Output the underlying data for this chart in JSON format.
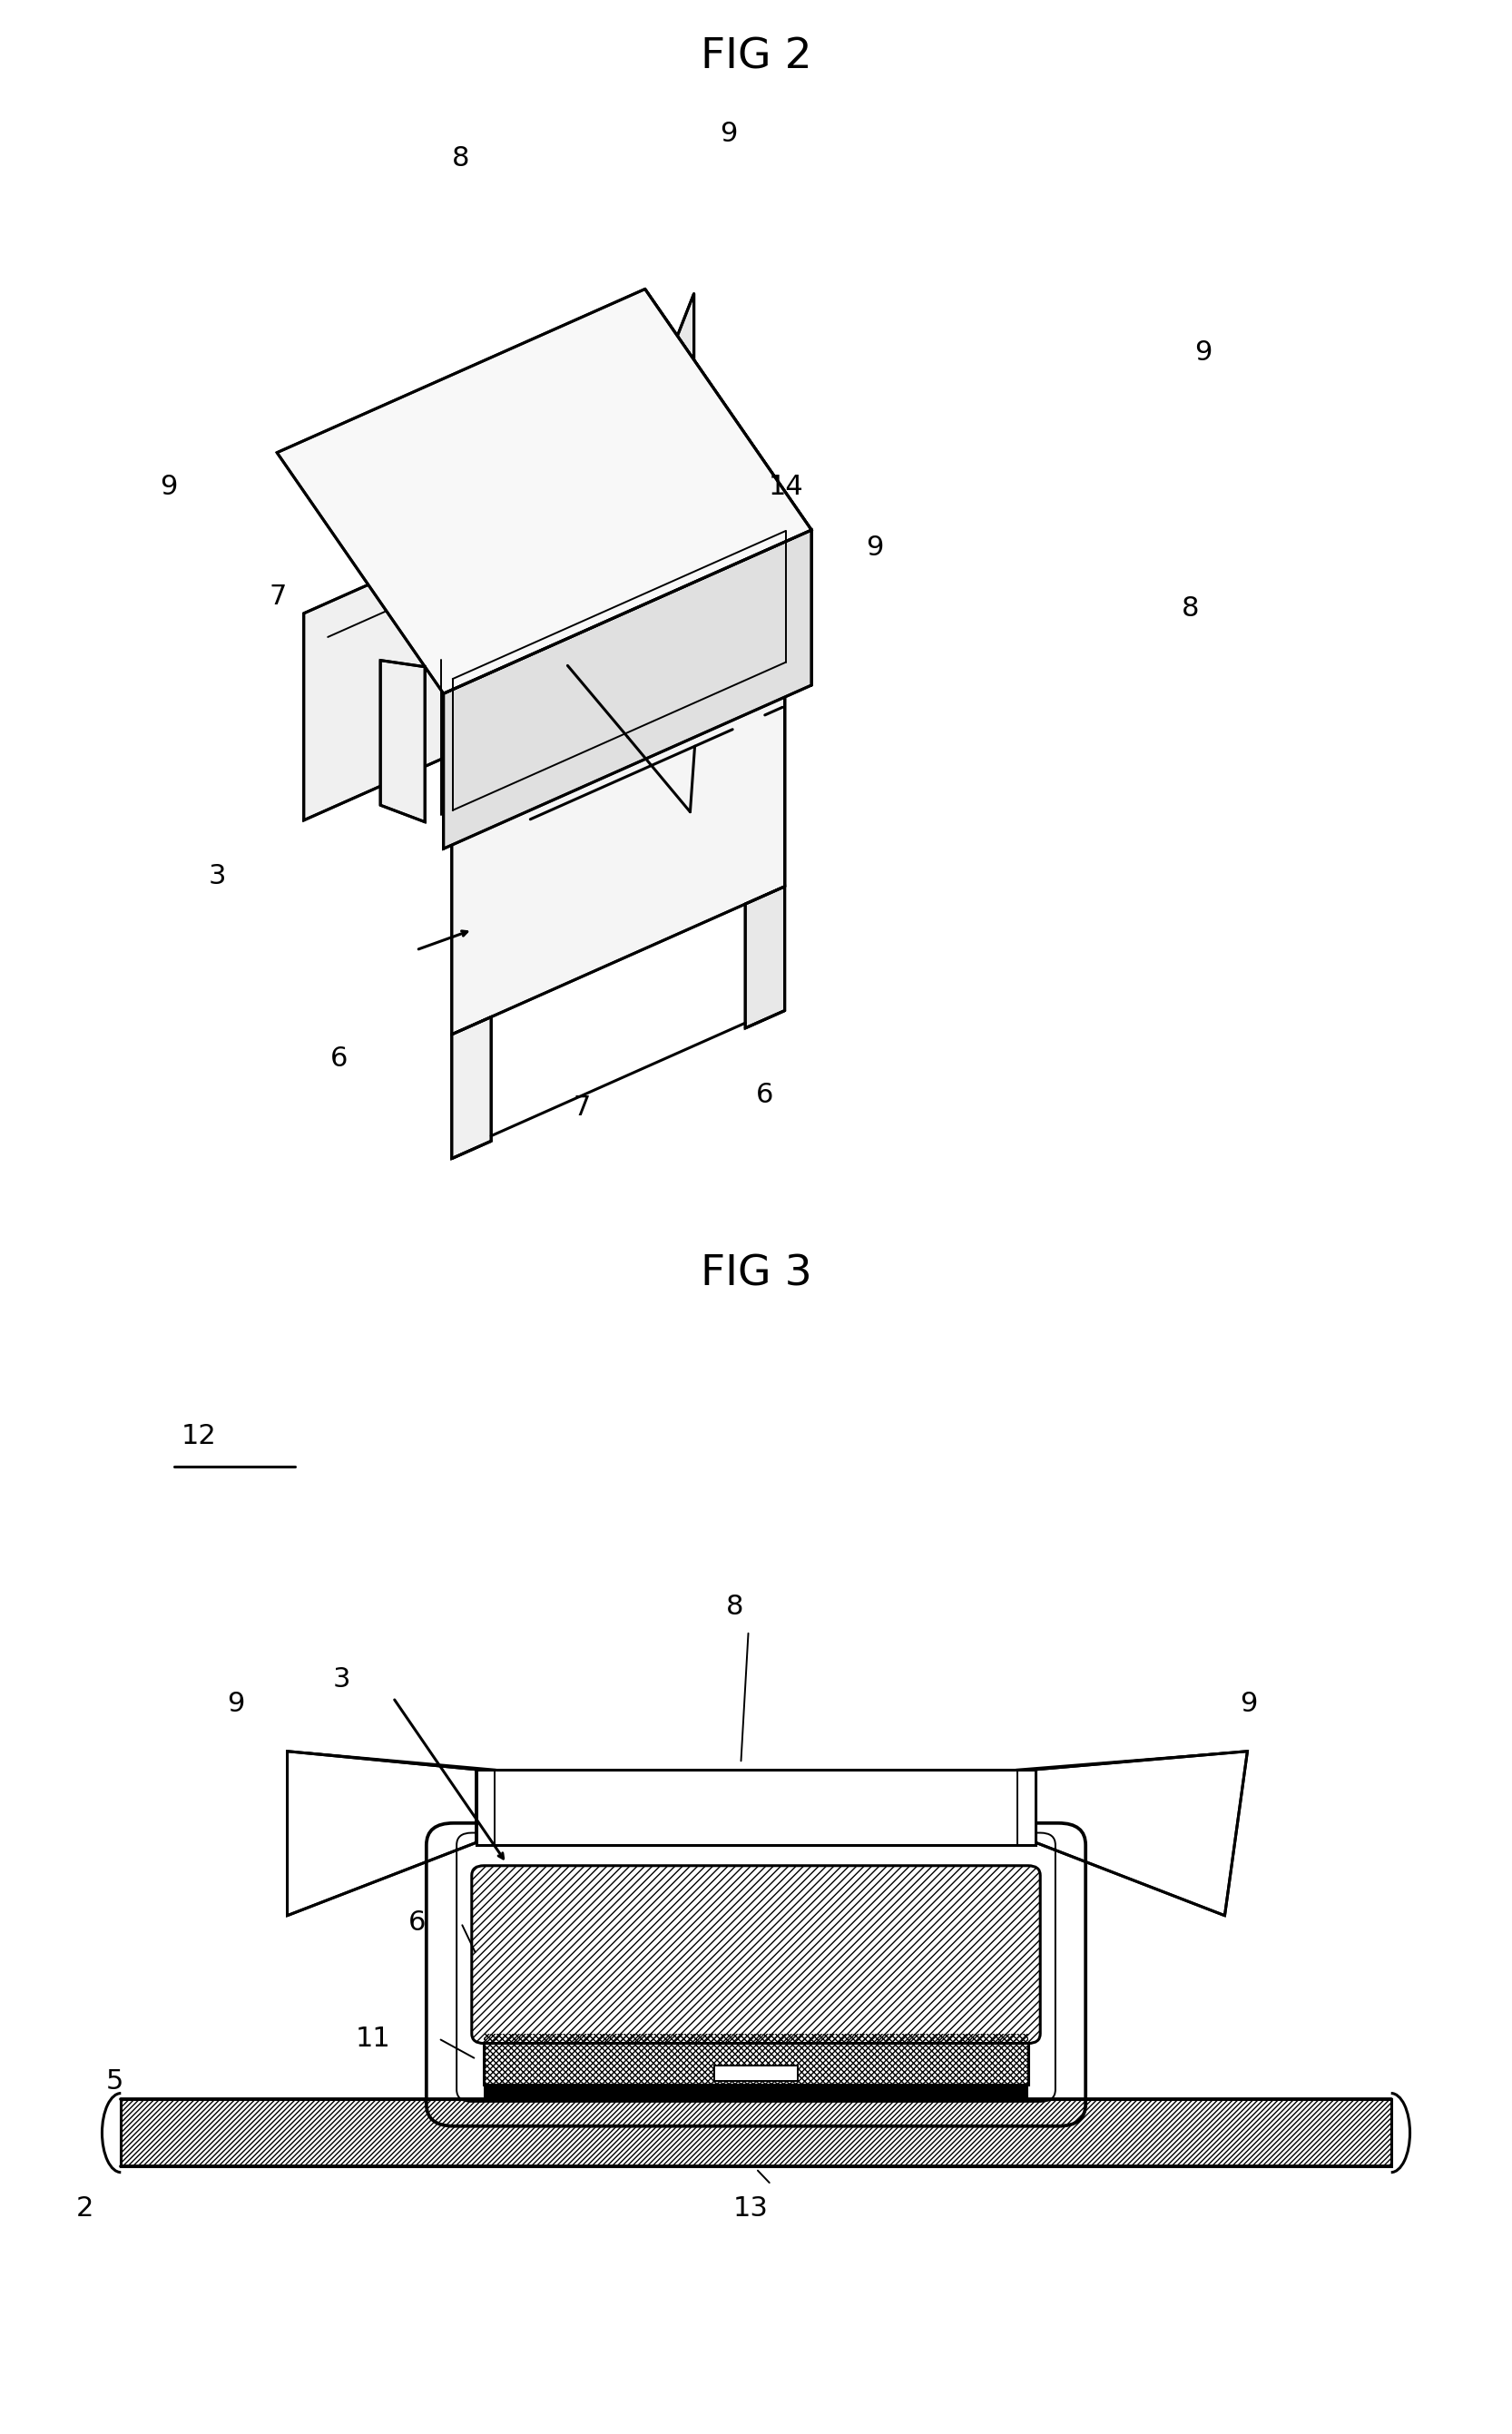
{
  "fig_width": 16.66,
  "fig_height": 26.82,
  "bg_color": "#ffffff",
  "lc": "#000000",
  "lw": 2.2,
  "tlw": 1.4,
  "fs": 22,
  "title_fs": 34,
  "fig2_title": "FIG 2",
  "fig3_title": "FIG 3"
}
